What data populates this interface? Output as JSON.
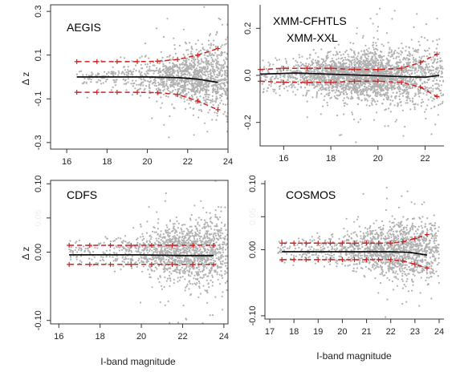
{
  "chart_data": [
    {
      "type": "scatter",
      "panel_label": [
        "AEGIS"
      ],
      "xlabel": "",
      "ylabel": "Δ z",
      "xlim": [
        15.2,
        24.0
      ],
      "ylim": [
        -0.33,
        0.33
      ],
      "xticks": [
        16,
        18,
        20,
        22,
        24
      ],
      "yticks": [
        -0.3,
        -0.1,
        0.1,
        0.3
      ],
      "ytick_labels": [
        "-0.3",
        "-0.1",
        "0.1",
        "0.3"
      ],
      "scatter_cloud": {
        "x_range": [
          16.5,
          24.0
        ],
        "sigma_at_start": 0.015,
        "sigma_at_end": 0.09,
        "count": 1300,
        "density_peak_x": 22.5,
        "color": "#b0b0b0"
      },
      "median_line": {
        "x": [
          16.5,
          18,
          20,
          21.5,
          22.5,
          23.5
        ],
        "y": [
          0.0,
          0.0,
          0.0,
          -0.003,
          -0.01,
          -0.025
        ],
        "color": "#111111"
      },
      "upper_band": {
        "x": [
          16.5,
          17.5,
          18.5,
          19.5,
          20.5,
          21.5,
          22.5,
          23.5
        ],
        "y": [
          0.07,
          0.07,
          0.07,
          0.07,
          0.072,
          0.08,
          0.1,
          0.13
        ],
        "color": "#cc2222"
      },
      "lower_band": {
        "x": [
          16.5,
          17.5,
          18.5,
          19.5,
          20.5,
          21.5,
          22.5,
          23.5
        ],
        "y": [
          -0.07,
          -0.07,
          -0.07,
          -0.07,
          -0.072,
          -0.08,
          -0.11,
          -0.15
        ],
        "color": "#cc2222"
      }
    },
    {
      "type": "scatter",
      "panel_label": [
        "XMM-CFHTLS",
        "XMM-XXL"
      ],
      "xlabel": "",
      "ylabel": "",
      "xlim": [
        15.0,
        22.8
      ],
      "ylim": [
        -0.3,
        0.3
      ],
      "xticks": [
        16,
        18,
        20,
        22
      ],
      "yticks": [
        -0.2,
        0.0,
        0.2
      ],
      "ytick_labels": [
        "-0.2",
        "0.0",
        "0.2"
      ],
      "scatter_cloud": {
        "x_range": [
          15.0,
          22.8
        ],
        "sigma_at_start": 0.035,
        "sigma_at_end": 0.07,
        "count": 2600,
        "density_peak_x": 19.5,
        "color": "#b0b0b0"
      },
      "median_line": {
        "x": [
          15.0,
          16.5,
          18,
          19.5,
          21,
          22,
          22.6
        ],
        "y": [
          0.005,
          0.01,
          0.005,
          0.0,
          -0.005,
          -0.008,
          0.0
        ],
        "color": "#111111"
      },
      "upper_band": {
        "x": [
          15.0,
          16.0,
          17.0,
          18.0,
          19.0,
          20.0,
          21.0,
          21.8,
          22.5
        ],
        "y": [
          0.025,
          0.03,
          0.03,
          0.03,
          0.025,
          0.025,
          0.03,
          0.055,
          0.09
        ],
        "color": "#cc2222"
      },
      "lower_band": {
        "x": [
          15.0,
          16.0,
          17.0,
          18.0,
          19.0,
          20.0,
          21.0,
          21.8,
          22.5
        ],
        "y": [
          -0.025,
          -0.03,
          -0.03,
          -0.03,
          -0.025,
          -0.025,
          -0.03,
          -0.05,
          -0.09
        ],
        "color": "#cc2222"
      }
    },
    {
      "type": "scatter",
      "panel_label": [
        "CDFS"
      ],
      "xlabel": "I-band magnitude",
      "ylabel": "Δ z",
      "xlim": [
        15.6,
        24.2
      ],
      "ylim": [
        -0.105,
        0.105
      ],
      "xticks": [
        16,
        18,
        20,
        22,
        24
      ],
      "yticks": [
        -0.1,
        0.0,
        0.05,
        0.1
      ],
      "ytick_labels": [
        "-0.10",
        "0.00",
        "0.05",
        "0.10"
      ],
      "scatter_cloud": {
        "x_range": [
          16.5,
          24.2
        ],
        "sigma_at_start": 0.008,
        "sigma_at_end": 0.03,
        "count": 1500,
        "density_peak_x": 22.3,
        "color": "#b0b0b0"
      },
      "median_line": {
        "x": [
          16.5,
          18,
          20,
          22,
          23.5
        ],
        "y": [
          -0.004,
          -0.004,
          -0.004,
          -0.005,
          -0.005
        ],
        "color": "#111111"
      },
      "upper_band": {
        "x": [
          16.5,
          17.5,
          18.5,
          19.5,
          20.5,
          21.5,
          22.5,
          23.5
        ],
        "y": [
          0.01,
          0.01,
          0.01,
          0.01,
          0.01,
          0.01,
          0.01,
          0.01
        ],
        "color": "#cc2222"
      },
      "lower_band": {
        "x": [
          16.5,
          17.5,
          18.5,
          19.5,
          20.5,
          21.5,
          22.5,
          23.5
        ],
        "y": [
          -0.018,
          -0.018,
          -0.018,
          -0.018,
          -0.018,
          -0.018,
          -0.018,
          -0.018
        ],
        "color": "#cc2222"
      }
    },
    {
      "type": "scatter",
      "panel_label": [
        "COSMOS"
      ],
      "xlabel": "I-band magnitude",
      "ylabel": "",
      "xlim": [
        16.8,
        24.2
      ],
      "ylim": [
        -0.105,
        0.105
      ],
      "xticks": [
        17,
        18,
        19,
        20,
        21,
        22,
        23,
        24
      ],
      "yticks": [
        -0.1,
        0.0,
        0.05,
        0.1
      ],
      "ytick_labels": [
        "-0.10",
        "0.00",
        "0.05",
        "0.10"
      ],
      "scatter_cloud": {
        "x_range": [
          17.3,
          24.0
        ],
        "sigma_at_start": 0.008,
        "sigma_at_end": 0.03,
        "count": 1500,
        "density_peak_x": 22.3,
        "color": "#b0b0b0"
      },
      "median_line": {
        "x": [
          17.5,
          19,
          20.5,
          22,
          22.8,
          23.5
        ],
        "y": [
          -0.003,
          -0.003,
          -0.003,
          -0.003,
          -0.004,
          -0.008
        ],
        "color": "#111111"
      },
      "upper_band": {
        "x": [
          17.5,
          18.0,
          18.5,
          19.0,
          19.5,
          20.0,
          20.5,
          21.0,
          21.5,
          22.0,
          22.5,
          23.0,
          23.5
        ],
        "y": [
          0.01,
          0.01,
          0.01,
          0.01,
          0.01,
          0.01,
          0.01,
          0.01,
          0.01,
          0.01,
          0.012,
          0.017,
          0.023
        ],
        "color": "#cc2222"
      },
      "lower_band": {
        "x": [
          17.5,
          18.0,
          18.5,
          19.0,
          19.5,
          20.0,
          20.5,
          21.0,
          21.5,
          22.0,
          22.5,
          23.0,
          23.5
        ],
        "y": [
          -0.015,
          -0.015,
          -0.015,
          -0.015,
          -0.015,
          -0.015,
          -0.015,
          -0.015,
          -0.015,
          -0.015,
          -0.017,
          -0.022,
          -0.028
        ],
        "color": "#cc2222"
      }
    }
  ]
}
